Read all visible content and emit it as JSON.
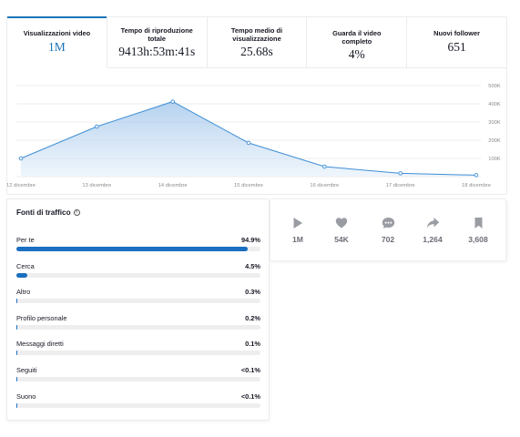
{
  "metrics": [
    {
      "label": "Visualizzazioni video",
      "value": "1M"
    },
    {
      "label": "Tempo di riproduzione totale",
      "value": "9413h:53m:41s"
    },
    {
      "label": "Tempo medio di visualizzazione",
      "value": "25.68s"
    },
    {
      "label": "Guarda il video completo",
      "value": "4%"
    },
    {
      "label": "Nuovi follower",
      "value": "651"
    }
  ],
  "chart_data": {
    "type": "area",
    "x": [
      "12 dicembre",
      "13 dicembre",
      "14 dicembre",
      "15 dicembre",
      "16 dicembre",
      "17 dicembre",
      "18 dicembre"
    ],
    "y_ticks": [
      "500K",
      "400K",
      "300K",
      "200K",
      "100K"
    ],
    "series": [
      {
        "values": [
          100000,
          275000,
          412000,
          185000,
          55000,
          18000,
          8000
        ]
      }
    ],
    "ylim": [
      0,
      500000
    ],
    "grid": true,
    "color": "#3f8fd6"
  },
  "traffic": {
    "title": "Fonti di traffico",
    "sources": [
      {
        "name": "Per te",
        "value": "94.9%",
        "pct": 94.9
      },
      {
        "name": "Cerca",
        "value": "4.5%",
        "pct": 4.5
      },
      {
        "name": "Altro",
        "value": "0.3%",
        "pct": 0.3
      },
      {
        "name": "Profilo personale",
        "value": "0.2%",
        "pct": 0.2
      },
      {
        "name": "Messaggi diretti",
        "value": "0.1%",
        "pct": 0.1
      },
      {
        "name": "Seguiti",
        "value": "<0.1%",
        "pct": 0.05
      },
      {
        "name": "Suono",
        "value": "<0.1%",
        "pct": 0.05
      }
    ]
  },
  "engagement": [
    {
      "icon": "play-icon",
      "value": "1M"
    },
    {
      "icon": "heart-icon",
      "value": "54K"
    },
    {
      "icon": "comment-icon",
      "value": "702"
    },
    {
      "icon": "share-icon",
      "value": "1,264"
    },
    {
      "icon": "bookmark-icon",
      "value": "3,608"
    }
  ]
}
